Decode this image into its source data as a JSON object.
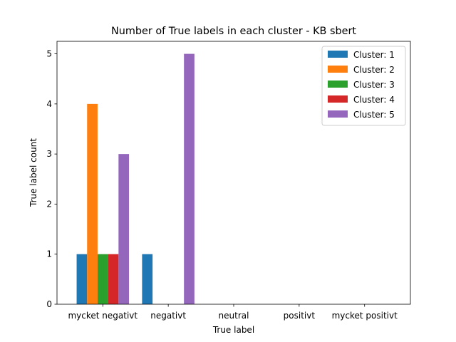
{
  "chart_data": {
    "type": "bar",
    "title": "Number of True labels in each cluster - KB sbert",
    "xlabel": "True label",
    "ylabel": "True label count",
    "categories": [
      "mycket negativt",
      "negativt",
      "neutral",
      "positivt",
      "mycket positivt"
    ],
    "series": [
      {
        "name": "Cluster: 1",
        "color": "#1f77b4",
        "values": [
          1,
          1,
          0,
          0,
          0
        ]
      },
      {
        "name": "Cluster: 2",
        "color": "#ff7f0e",
        "values": [
          4,
          0,
          0,
          0,
          0
        ]
      },
      {
        "name": "Cluster: 3",
        "color": "#2ca02c",
        "values": [
          1,
          0,
          0,
          0,
          0
        ]
      },
      {
        "name": "Cluster: 4",
        "color": "#d62728",
        "values": [
          1,
          0,
          0,
          0,
          0
        ]
      },
      {
        "name": "Cluster: 5",
        "color": "#9467bd",
        "values": [
          3,
          5,
          0,
          0,
          0
        ]
      }
    ],
    "yticks": [
      "0",
      "1",
      "2",
      "3",
      "4",
      "5"
    ],
    "ylim": [
      0,
      5.25
    ],
    "grid": false,
    "legend_position": "top-right"
  }
}
